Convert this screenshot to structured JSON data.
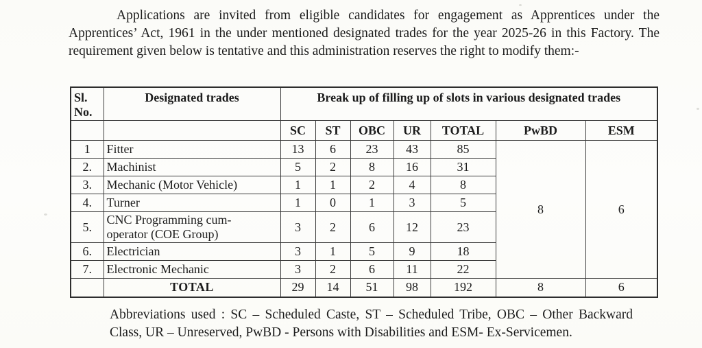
{
  "document": {
    "intro_paragraph": "Applications are invited from eligible candidates for engagement as Apprentices under the Apprentices’ Act, 1961 in the under mentioned designated trades for the year 2025-26 in this Factory. The requirement given below is tentative and this administration reserves the right to modify them:-",
    "abbreviations_note": "Abbreviations used : SC – Scheduled Caste, ST – Scheduled Tribe, OBC – Other Backward Class, UR – Unreserved, PwBD - Persons with Disabilities and ESM- Ex-Servicemen."
  },
  "table": {
    "header": {
      "sl_no": "Sl. No.",
      "designated_trades": "Designated trades",
      "breakup": "Break up of filling up of slots in various designated trades",
      "columns": [
        "SC",
        "ST",
        "OBC",
        "UR",
        "TOTAL",
        "PwBD",
        "ESM"
      ]
    },
    "rows": [
      {
        "sl": "1",
        "trade": "Fitter",
        "sc": "13",
        "st": "6",
        "obc": "23",
        "ur": "43",
        "total": "85"
      },
      {
        "sl": "2.",
        "trade": "Machinist",
        "sc": "5",
        "st": "2",
        "obc": "8",
        "ur": "16",
        "total": "31"
      },
      {
        "sl": "3.",
        "trade": "Mechanic (Motor Vehicle)",
        "sc": "1",
        "st": "1",
        "obc": "2",
        "ur": "4",
        "total": "8"
      },
      {
        "sl": "4.",
        "trade": "Turner",
        "sc": "1",
        "st": "0",
        "obc": "1",
        "ur": "3",
        "total": "5"
      },
      {
        "sl": "5.",
        "trade": "CNC Programming cum-\noperator (COE Group)",
        "sc": "3",
        "st": "2",
        "obc": "6",
        "ur": "12",
        "total": "23"
      },
      {
        "sl": "6.",
        "trade": "Electrician",
        "sc": "3",
        "st": "1",
        "obc": "5",
        "ur": "9",
        "total": "18"
      },
      {
        "sl": "7.",
        "trade": "Electronic Mechanic",
        "sc": "3",
        "st": "2",
        "obc": "6",
        "ur": "11",
        "total": "22"
      }
    ],
    "merged_cells": {
      "pwbd": "8",
      "esm": "6"
    },
    "total_row": {
      "sl": "",
      "label": "TOTAL",
      "sc": "29",
      "st": "14",
      "obc": "51",
      "ur": "98",
      "total": "192",
      "pwbd": "8",
      "esm": "6"
    }
  }
}
